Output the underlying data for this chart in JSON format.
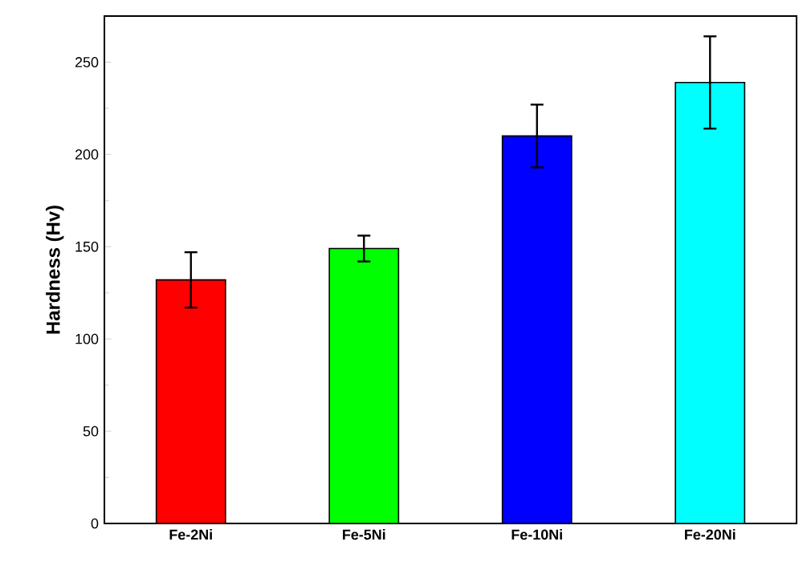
{
  "chart_data": {
    "type": "bar",
    "ylabel": "Hardness (Hv)",
    "categories": [
      "Fe-2Ni",
      "Fe-5Ni",
      "Fe-10Ni",
      "Fe-20Ni"
    ],
    "values": [
      132,
      149,
      210,
      239
    ],
    "errors": [
      15,
      7,
      17,
      25
    ],
    "colors": [
      "#ff0000",
      "#00ff00",
      "#0000ff",
      "#00ffff"
    ],
    "ylim": [
      0,
      275
    ],
    "yticks": [
      0,
      50,
      100,
      150,
      200,
      250
    ],
    "grid": false
  }
}
